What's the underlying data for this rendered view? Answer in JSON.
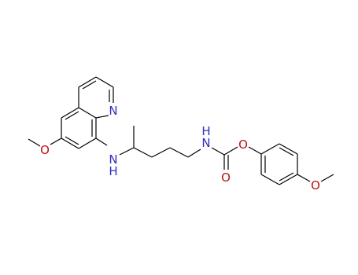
{
  "atoms": [
    {
      "label": "N"
    },
    {
      "label": "O"
    },
    {
      "label": "N",
      "hydrogen": "H"
    },
    {
      "label": "N",
      "hydrogen": "H"
    },
    {
      "label": "O"
    },
    {
      "label": "O"
    },
    {
      "label": "O"
    }
  ]
}
